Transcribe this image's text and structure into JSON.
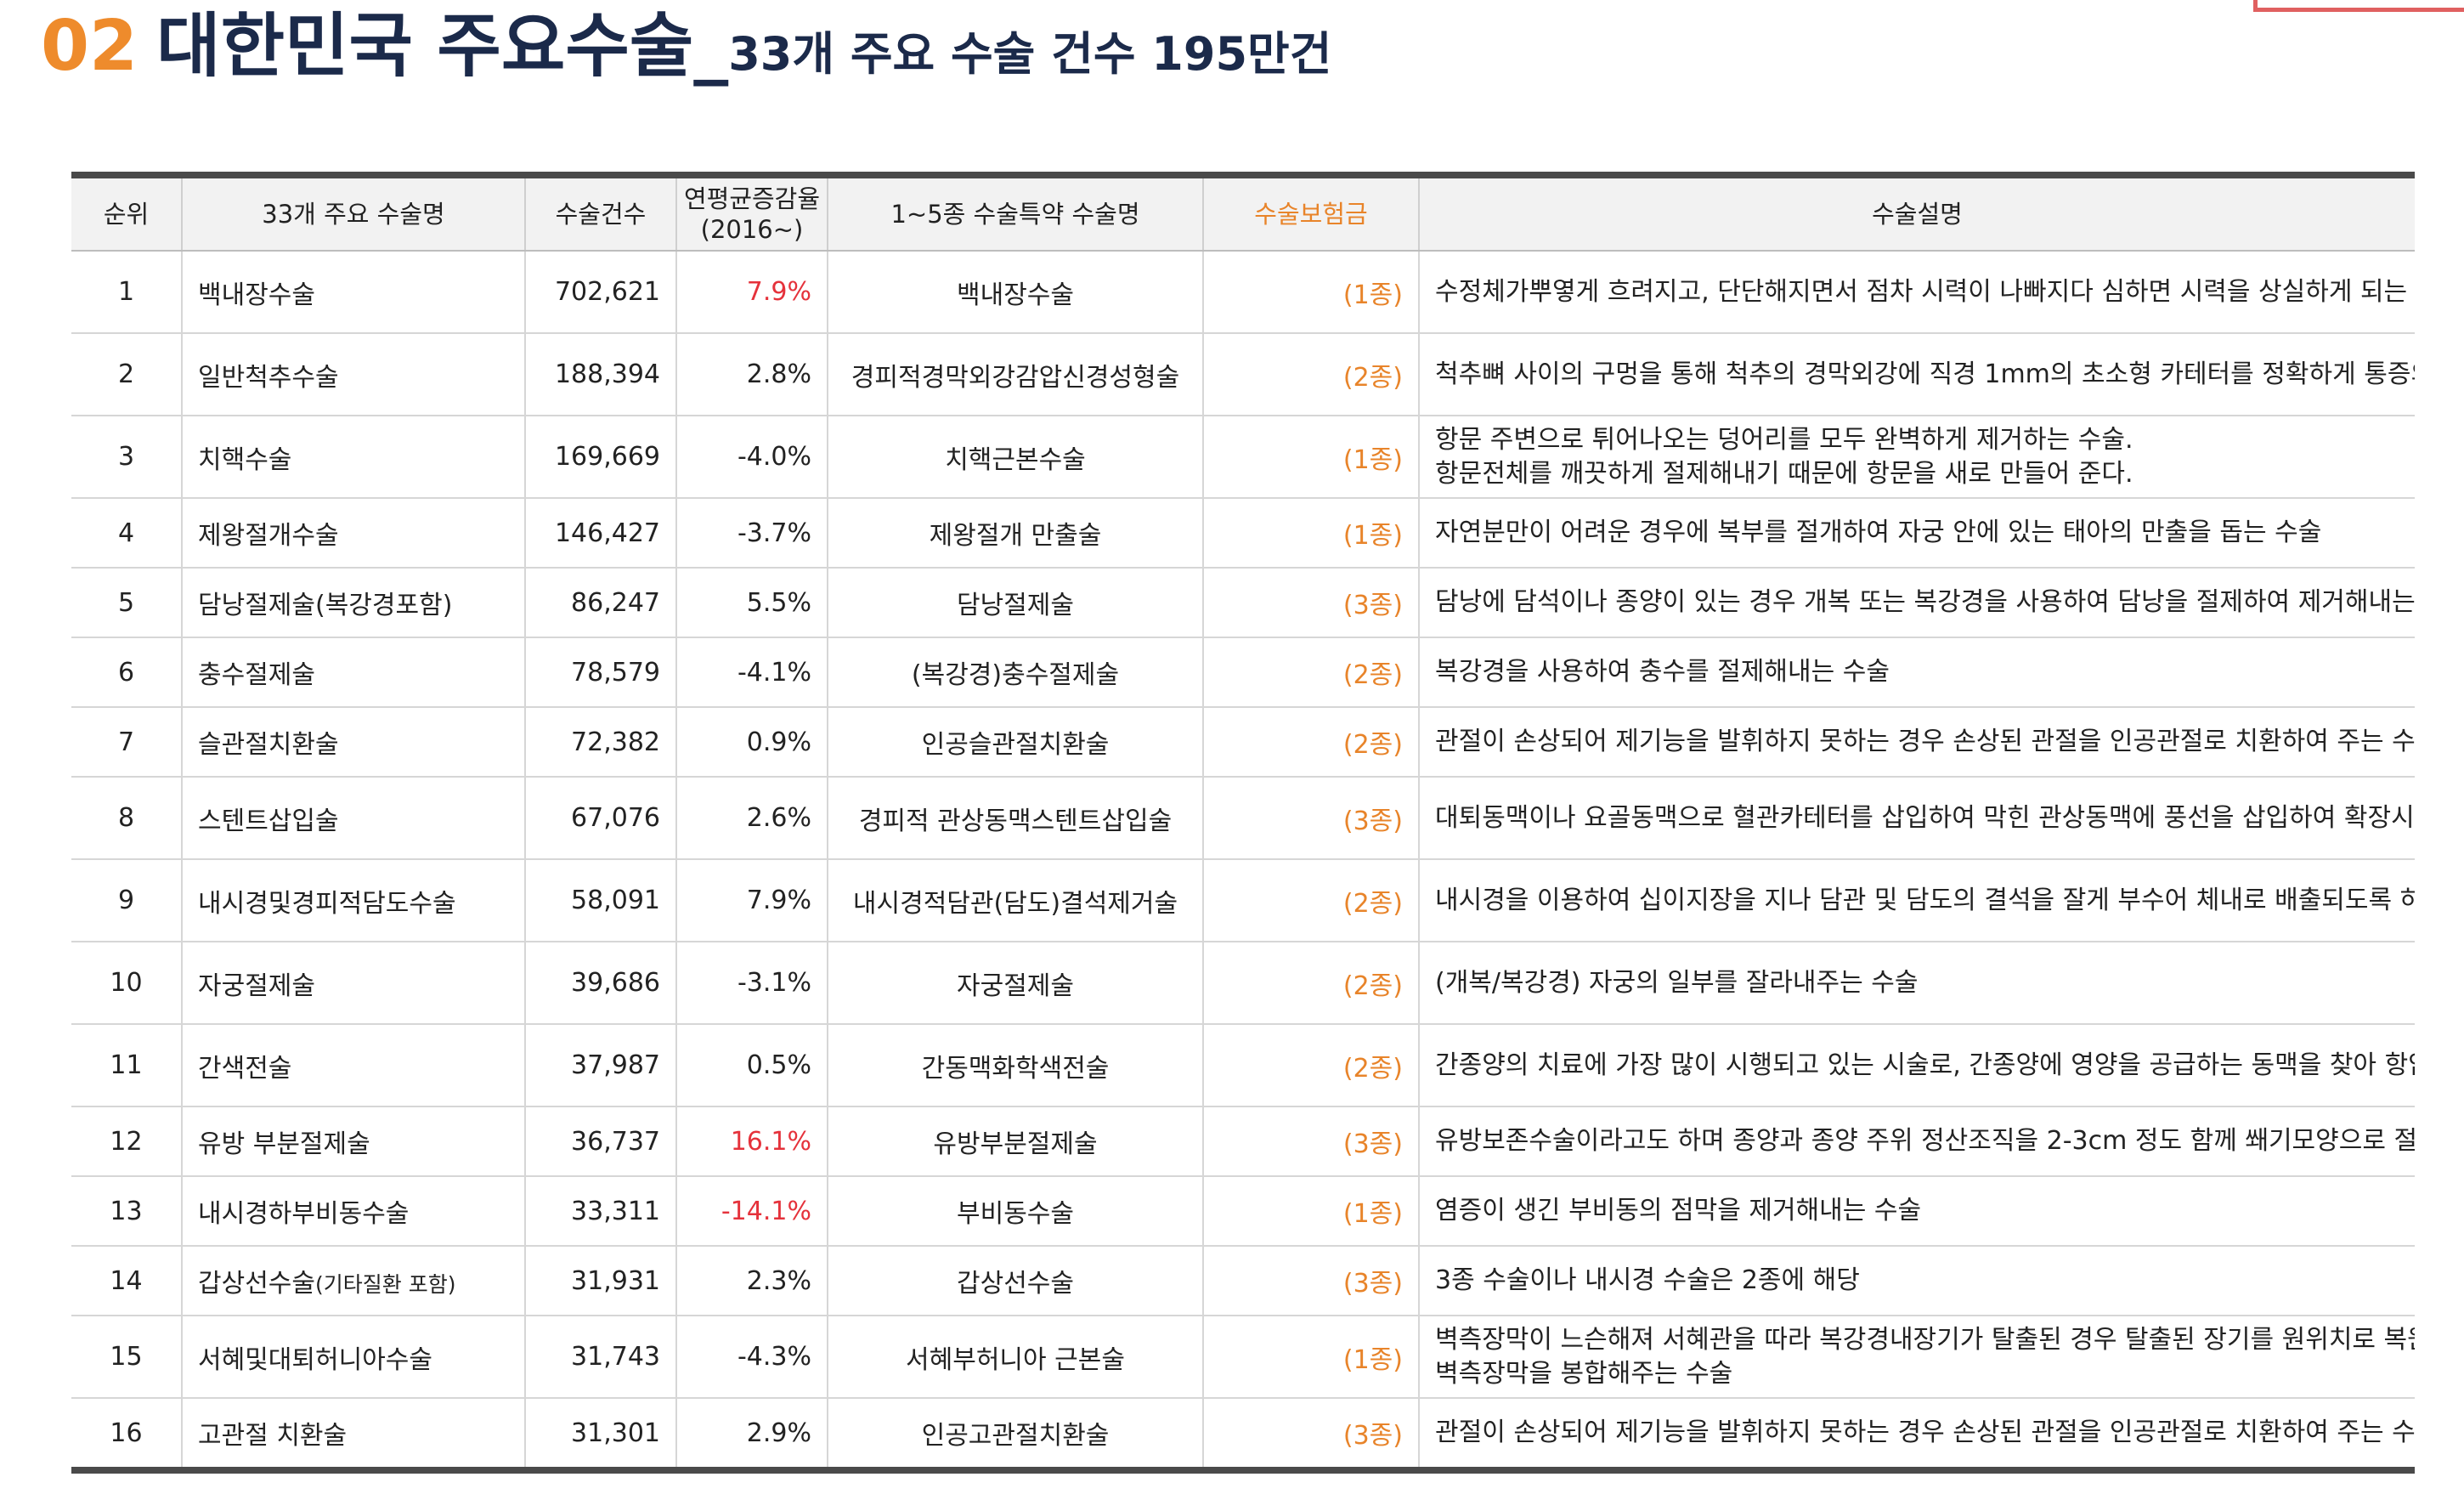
{
  "title": {
    "number": "02",
    "main": "대한민국 주요수술_",
    "sub": "33개 주요 수술 건수 195만건"
  },
  "columns": {
    "rank": "순위",
    "name": "33개 주요 수술명",
    "count": "수술건수",
    "rate_line1": "연평균증감율",
    "rate_line2": "(2016~)",
    "rider": "1~5종 수술특약 수술명",
    "grade": "수술보험금",
    "desc": "수술설명"
  },
  "highlight_colors": {
    "orange": "#e8842a",
    "red": "#e5323b",
    "navy": "#1b2a4a"
  },
  "rows": [
    {
      "rank": "1",
      "name": "백내장수술",
      "count": "702,621",
      "rate": "7.9%",
      "rate_red": true,
      "rider": "백내장수술",
      "grade": "(1종)",
      "desc": "수정체가뿌옇게 흐려지고, 단단해지면서 점차 시력이 나빠지다 심하면 시력을 상실하게 되는 질환을 수술"
    },
    {
      "rank": "2",
      "name": "일반척추수술",
      "count": "188,394",
      "rate": "2.8%",
      "rate_red": false,
      "rider": "경피적경막외강감압신경성형술",
      "grade": "(2종)",
      "desc": "척추뼈 사이의 구멍을 통해 척추의 경막외강에 직경 1mm의 초소형 카테터를 정확하게 통증의 원인이 되는 부위를 찾아 특수약물을 주입하는 시술"
    },
    {
      "rank": "3",
      "name": "치핵수술",
      "count": "169,669",
      "rate": "-4.0%",
      "rate_red": false,
      "rider": "치핵근본수술",
      "grade": "(1종)",
      "desc_line1": "항문 주변으로 튀어나오는 덩어리를 모두 완벽하게 제거하는 수술.",
      "desc_line2": "항문전체를 깨끗하게 절제해내기 때문에 항문을 새로 만들어 준다."
    },
    {
      "rank": "4",
      "name": "제왕절개수술",
      "count": "146,427",
      "rate": "-3.7%",
      "rate_red": false,
      "rider": "제왕절개 만출술",
      "grade": "(1종)",
      "desc": "자연분만이 어려운 경우에 복부를 절개하여 자궁 안에 있는 태아의 만출을 돕는 수술"
    },
    {
      "rank": "5",
      "name": "담낭절제술(복강경포함)",
      "count": "86,247",
      "rate": "5.5%",
      "rate_red": false,
      "rider": "담낭절제술",
      "grade": "(3종)",
      "desc": "담낭에 담석이나 종양이 있는 경우 개복 또는 복강경을 사용하여 담낭을 절제하여 제거해내는 수술"
    },
    {
      "rank": "6",
      "name": "충수절제술",
      "count": "78,579",
      "rate": "-4.1%",
      "rate_red": false,
      "rider": "(복강경)충수절제술",
      "grade": "(2종)",
      "desc": "복강경을 사용하여 충수를 절제해내는 수술"
    },
    {
      "rank": "7",
      "name": "슬관절치환술",
      "count": "72,382",
      "rate": "0.9%",
      "rate_red": false,
      "rider": "인공슬관절치환술",
      "grade": "(2종)",
      "desc": "관절이 손상되어 제기능을 발휘하지 못하는 경우 손상된 관절을 인공관절로 치환하여 주는 수술"
    },
    {
      "rank": "8",
      "name": "스텐트삽입술",
      "count": "67,076",
      "rate": "2.6%",
      "rate_red": false,
      "rider": "경피적 관상동맥스텐트삽입술",
      "grade": "(3종)",
      "desc": "대퇴동맥이나 요골동맥으로 혈관카테터를 삽입하여 막힌 관상동맥에 풍선을 삽입하여 확장시켜주거나 스텐트를 삽입해 좁아져있는 혈관을 넓혀주는 시술"
    },
    {
      "rank": "9",
      "name": "내시경및경피적담도수술",
      "count": "58,091",
      "rate": "7.9%",
      "rate_red": false,
      "rider": "내시경적담관(담도)결석제거술",
      "grade": "(2종)",
      "desc": "내시경을 이용하여 십이지장을 지나 담관 및 담도의 결석을 잘게 부수어 체내로 배출되도록 하거나 바스켓으로 끄집어내 제거하는 수술"
    },
    {
      "rank": "10",
      "name": "자궁절제술",
      "count": "39,686",
      "rate": "-3.1%",
      "rate_red": false,
      "rider": "자궁절제술",
      "grade": "(2종)",
      "desc": "(개복/복강경) 자궁의 일부를 잘라내주는 수술"
    },
    {
      "rank": "11",
      "name": "간색전술",
      "count": "37,987",
      "rate": "0.5%",
      "rate_red": false,
      "rider": "간동맥화학색전술",
      "grade": "(2종)",
      "desc": "간종양의 치료에 가장 많이 시행되고 있는 시술로, 간종양에 영양을 공급하는 동맥을 찾아 항암제를 투여한 다음 혈관을 막아주는 치료"
    },
    {
      "rank": "12",
      "name": "유방 부분절제술",
      "count": "36,737",
      "rate": "16.1%",
      "rate_red": true,
      "rider": "유방부분절제술",
      "grade": "(3종)",
      "desc": "유방보존수술이라고도 하며 종양과 종양 주위 정산조직을 2-3cm 정도 함께 쐐기모양으로 절제"
    },
    {
      "rank": "13",
      "name": "내시경하부비동수술",
      "count": "33,311",
      "rate": "-14.1%",
      "rate_red": true,
      "rider": "부비동수술",
      "grade": "(1종)",
      "desc": "염증이 생긴 부비동의 점막을 제거해내는 수술"
    },
    {
      "rank": "14",
      "name": "갑상선수술",
      "name_note": "(기타질환 포함)",
      "count": "31,931",
      "rate": "2.3%",
      "rate_red": false,
      "rider": "갑상선수술",
      "grade": "(3종)",
      "desc": "3종 수술이나 내시경 수술은 2종에 해당"
    },
    {
      "rank": "15",
      "name": "서혜및대퇴허니아수술",
      "count": "31,743",
      "rate": "-4.3%",
      "rate_red": false,
      "rider": "서혜부허니아 근본술",
      "grade": "(1종)",
      "desc_line1": "벽측장막이 느슨해져 서혜관을 따라 복강경내장기가 탈출된 경우 탈출된 장기를 원위치로 복원시키고,",
      "desc_line2": "벽측장막을 봉합해주는 수술"
    },
    {
      "rank": "16",
      "name": "고관절 치환술",
      "count": "31,301",
      "rate": "2.9%",
      "rate_red": false,
      "rider": "인공고관절치환술",
      "grade": "(3종)",
      "desc": "관절이 손상되어 제기능을 발휘하지 못하는 경우 손상된 관절을 인공관절로 치환하여 주는 수술"
    }
  ]
}
